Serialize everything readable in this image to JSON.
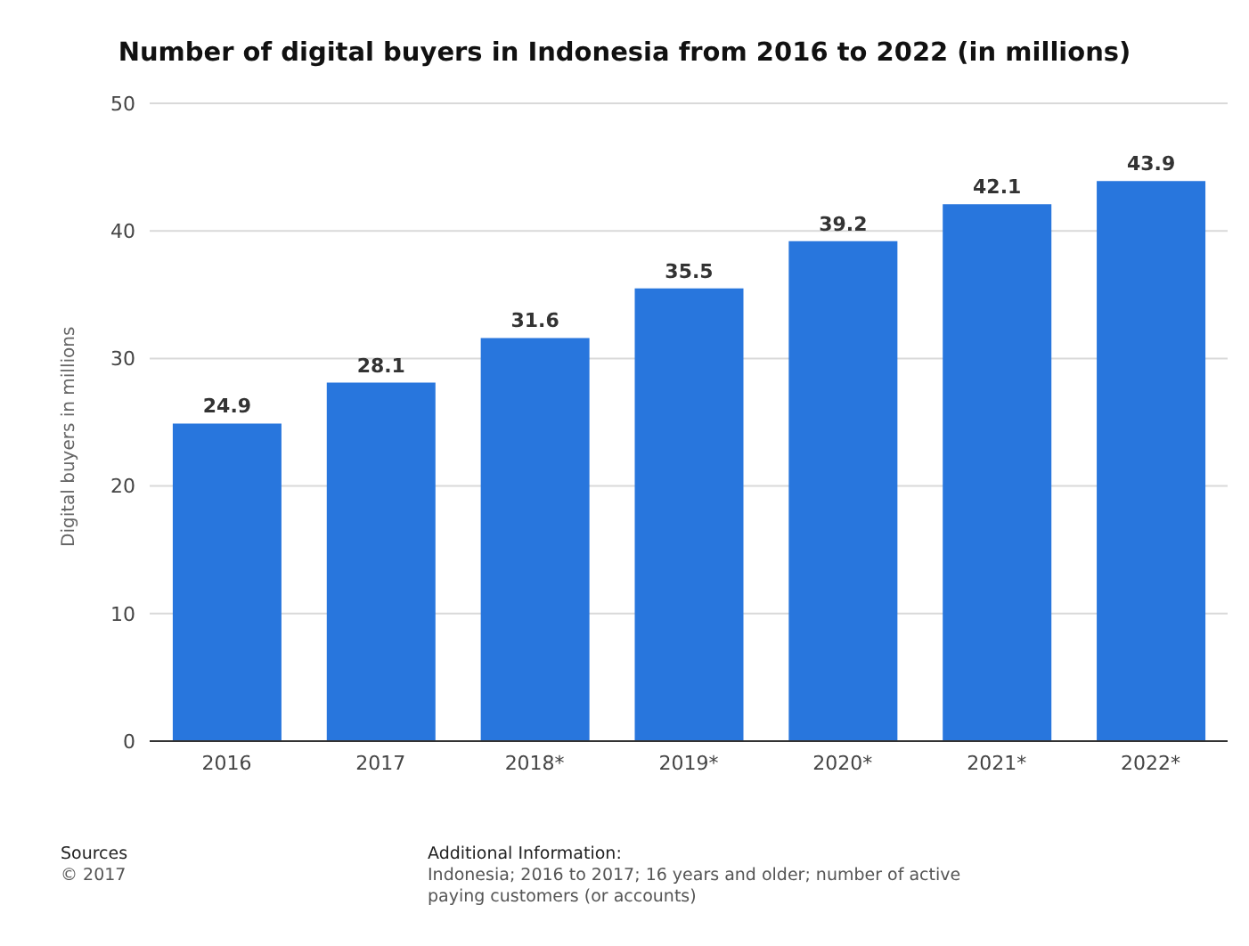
{
  "chart_data": {
    "type": "bar",
    "title": "Number of digital buyers in Indonesia from 2016 to 2022 (in millions)",
    "ylabel": "Digital buyers in millions",
    "categories": [
      "2016",
      "2017",
      "2018*",
      "2019*",
      "2020*",
      "2021*",
      "2022*"
    ],
    "series": [
      {
        "color": "#2876dd",
        "values": [
          24.9,
          28.1,
          31.6,
          35.5,
          39.2,
          42.1,
          43.9
        ]
      }
    ],
    "ylim": [
      0,
      50
    ],
    "yticks": [
      0,
      10,
      20,
      30,
      40,
      50
    ],
    "grid": "y",
    "data_labels": true,
    "annotations": [
      "Sources",
      "© 2017",
      "Additional Information:",
      "Indonesia; 2016 to 2017; 16 years and older; number of active paying customers (or accounts)"
    ]
  }
}
